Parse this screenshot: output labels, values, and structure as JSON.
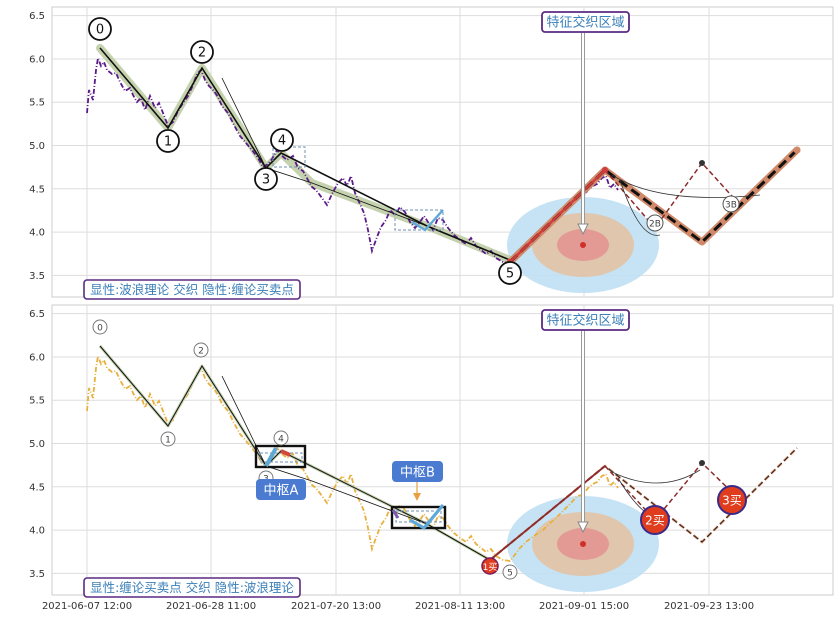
{
  "chart_data": [
    {
      "type": "line",
      "panel": "top",
      "yticks": [
        "3.5",
        "4.0",
        "4.5",
        "5.0",
        "5.5",
        "6.0",
        "6.5"
      ],
      "ylim": [
        3.25,
        6.6
      ],
      "grid": true,
      "wave_points": [
        {
          "label": "0",
          "x": "2021-06-10",
          "y": 6.1
        },
        {
          "label": "1",
          "x": "2021-06-24",
          "y": 5.15
        },
        {
          "label": "2",
          "x": "2021-06-29",
          "y": 5.88
        },
        {
          "label": "3",
          "x": "2021-07-17",
          "y": 4.7
        },
        {
          "label": "4",
          "x": "2021-07-19",
          "y": 4.93
        },
        {
          "label": "5",
          "x": "2021-08-25",
          "y": 3.58
        }
      ],
      "projection": [
        {
          "x": "2021-08-25",
          "y": 3.58
        },
        {
          "x": "2021-09-05",
          "y": 4.7
        },
        {
          "x": "2021-09-24",
          "y": 3.82
        },
        {
          "x": "2021-10-17",
          "y": 4.92
        }
      ],
      "feature_zone_label": "特征交织区域",
      "feature_zone_center": {
        "x": "2021-09-01",
        "y": 3.8
      },
      "markers": [
        "2B",
        "3B"
      ],
      "caption": "显性:波浪理论 交织 隐性:缠论买卖点",
      "colors": {
        "price": "#5b1a8a",
        "wave": "#c5d2ae",
        "projection": "#d08a6a",
        "zone": "#c9e3f3"
      }
    },
    {
      "type": "line",
      "panel": "bottom",
      "yticks": [
        "3.5",
        "4.0",
        "4.5",
        "5.0",
        "5.5",
        "6.0",
        "6.5"
      ],
      "ylim": [
        3.25,
        6.6
      ],
      "grid": true,
      "xticks": [
        "2021-06-07 12:00",
        "2021-06-28 11:00",
        "2021-07-20 13:00",
        "2021-08-11 13:00",
        "2021-09-01 15:00",
        "2021-09-23 13:00"
      ],
      "wave_points": [
        {
          "label": "0",
          "x": "2021-06-10",
          "y": 6.1
        },
        {
          "label": "1",
          "x": "2021-06-24",
          "y": 5.15
        },
        {
          "label": "2",
          "x": "2021-06-29",
          "y": 5.88
        },
        {
          "label": "3",
          "x": "2021-07-17",
          "y": 4.7
        },
        {
          "label": "4",
          "x": "2021-07-19",
          "y": 4.93
        },
        {
          "label": "5",
          "x": "2021-08-25",
          "y": 3.58
        }
      ],
      "centers": [
        {
          "label": "中枢A",
          "x_range": [
            "2021-07-14",
            "2021-07-20"
          ],
          "y_range": [
            4.7,
            4.93
          ]
        },
        {
          "label": "中枢B",
          "x_range": [
            "2021-08-08",
            "2021-08-14"
          ],
          "y_range": [
            4.0,
            4.25
          ]
        }
      ],
      "buy_points": [
        {
          "label": "1买",
          "x": "2021-08-25",
          "y": 3.58
        },
        {
          "label": "2买",
          "x": "2021-09-12",
          "y": 4.1
        },
        {
          "label": "3买",
          "x": "2021-09-27",
          "y": 4.3
        }
      ],
      "feature_zone_label": "特征交织区域",
      "caption": "显性:缠论买卖点 交织 隐性:波浪理论",
      "colors": {
        "price": "#e8b040",
        "stroke": "#c5d2ae",
        "center_pill": "#4a7bd1",
        "buy": "#e03c1e"
      }
    }
  ]
}
